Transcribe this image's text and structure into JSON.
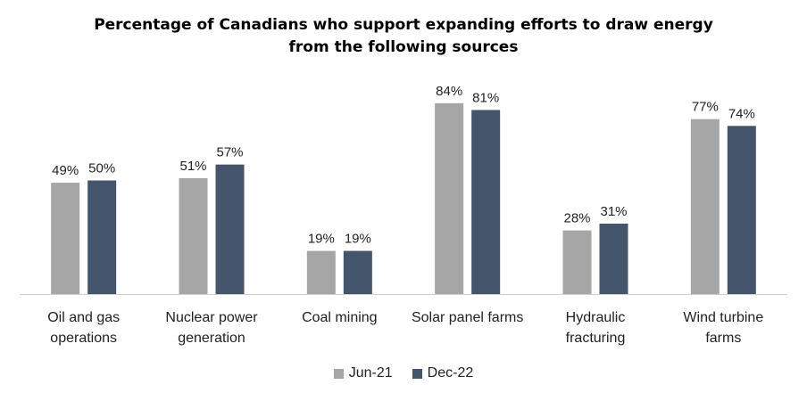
{
  "chart_data": {
    "type": "bar",
    "title_lines": [
      "Percentage of Canadians who support expanding efforts to draw energy",
      "from the following sources"
    ],
    "categories": [
      [
        "Oil and gas",
        "operations"
      ],
      [
        "Nuclear power",
        "generation"
      ],
      [
        "Coal mining"
      ],
      [
        "Solar panel farms"
      ],
      [
        "Hydraulic",
        "fracturing"
      ],
      [
        "Wind turbine",
        "farms"
      ]
    ],
    "series": [
      {
        "name": "Jun-21",
        "color": "#a6a6a6",
        "values": [
          49,
          51,
          19,
          84,
          28,
          77
        ],
        "labels": [
          "49%",
          "51%",
          "19%",
          "84%",
          "28%",
          "77%"
        ]
      },
      {
        "name": "Dec-22",
        "color": "#44546a",
        "values": [
          50,
          57,
          19,
          81,
          31,
          74
        ],
        "labels": [
          "50%",
          "57%",
          "19%",
          "81%",
          "31%",
          "74%"
        ]
      }
    ],
    "ylim": [
      0,
      100
    ],
    "grid": false,
    "legend_position": "bottom"
  }
}
